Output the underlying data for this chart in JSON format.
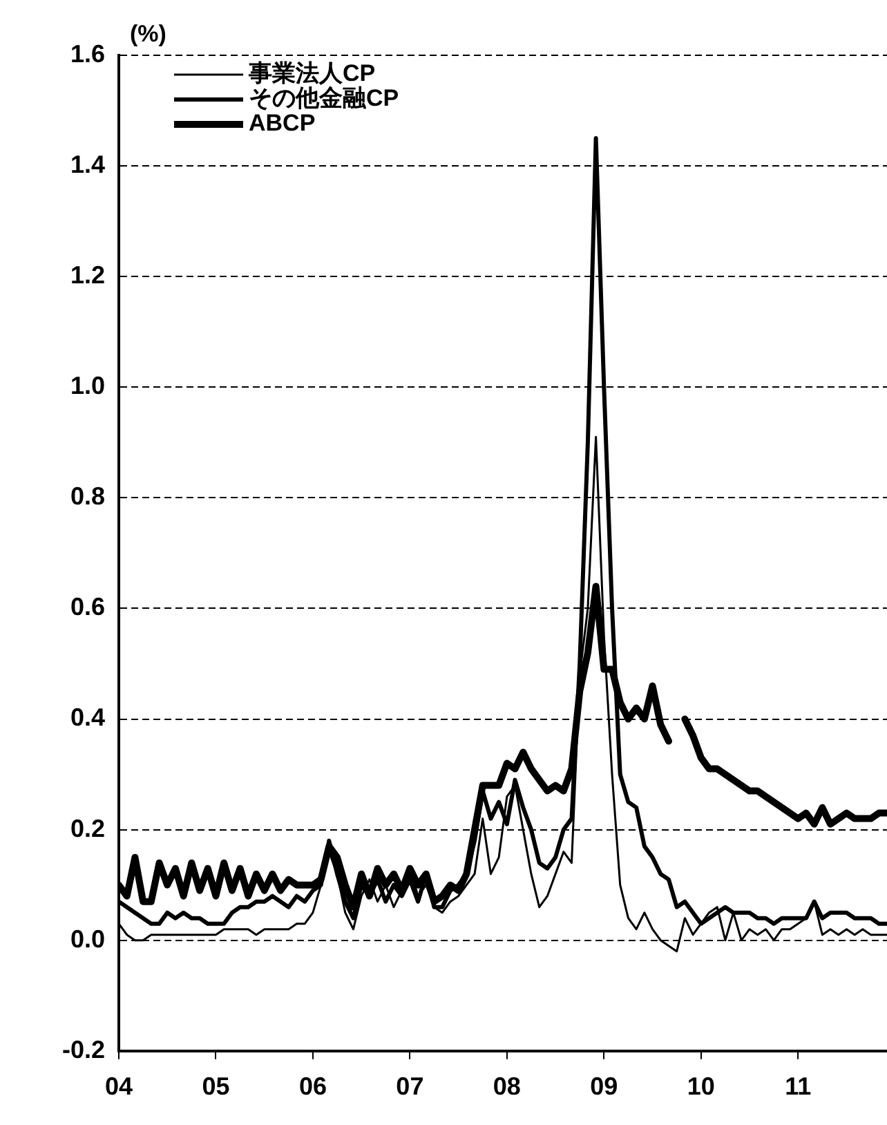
{
  "chart_data": {
    "type": "line",
    "ylabel": "(%)",
    "x": [
      "2004-01",
      "2004-02",
      "2004-03",
      "2004-04",
      "2004-05",
      "2004-06",
      "2004-07",
      "2004-08",
      "2004-09",
      "2004-10",
      "2004-11",
      "2004-12",
      "2005-01",
      "2005-02",
      "2005-03",
      "2005-04",
      "2005-05",
      "2005-06",
      "2005-07",
      "2005-08",
      "2005-09",
      "2005-10",
      "2005-11",
      "2005-12",
      "2006-01",
      "2006-02",
      "2006-03",
      "2006-04",
      "2006-05",
      "2006-06",
      "2006-07",
      "2006-08",
      "2006-09",
      "2006-10",
      "2006-11",
      "2006-12",
      "2007-01",
      "2007-02",
      "2007-03",
      "2007-04",
      "2007-05",
      "2007-06",
      "2007-07",
      "2007-08",
      "2007-09",
      "2007-10",
      "2007-11",
      "2007-12",
      "2008-01",
      "2008-02",
      "2008-03",
      "2008-04",
      "2008-05",
      "2008-06",
      "2008-07",
      "2008-08",
      "2008-09",
      "2008-10",
      "2008-11",
      "2008-12",
      "2009-01",
      "2009-02",
      "2009-03",
      "2009-04",
      "2009-05",
      "2009-06",
      "2009-07",
      "2009-08",
      "2009-09",
      "2009-10",
      "2009-11",
      "2009-12",
      "2010-01",
      "2010-02",
      "2010-03",
      "2010-04",
      "2010-05",
      "2010-06",
      "2010-07",
      "2010-08",
      "2010-09",
      "2010-10",
      "2010-11",
      "2010-12",
      "2011-01",
      "2011-02",
      "2011-03",
      "2011-04",
      "2011-05",
      "2011-06",
      "2011-07",
      "2011-08",
      "2011-09",
      "2011-10",
      "2011-11",
      "2011-12"
    ],
    "series": [
      {
        "name": "事業法人CP",
        "color": "#000000",
        "values": [
          0.03,
          0.01,
          0.0,
          0.0,
          0.01,
          0.01,
          0.01,
          0.01,
          0.01,
          0.01,
          0.01,
          0.01,
          0.01,
          0.02,
          0.02,
          0.02,
          0.02,
          0.01,
          0.02,
          0.02,
          0.02,
          0.02,
          0.03,
          0.03,
          0.05,
          0.1,
          0.16,
          0.12,
          0.05,
          0.02,
          0.08,
          0.11,
          0.07,
          0.1,
          0.06,
          0.09,
          0.13,
          0.08,
          0.1,
          0.06,
          0.05,
          0.07,
          0.08,
          0.1,
          0.12,
          0.22,
          0.12,
          0.15,
          0.26,
          0.28,
          0.2,
          0.12,
          0.06,
          0.08,
          0.12,
          0.16,
          0.14,
          0.48,
          0.6,
          0.91,
          0.55,
          0.3,
          0.1,
          0.04,
          0.02,
          0.05,
          0.02,
          0.0,
          -0.01,
          -0.02,
          0.04,
          0.01,
          0.03,
          0.05,
          0.06,
          0.0,
          0.05,
          0.0,
          0.02,
          0.01,
          0.02,
          0.0,
          0.02,
          0.02,
          0.03,
          0.04,
          0.07,
          0.01,
          0.02,
          0.01,
          0.02,
          0.01,
          0.02,
          0.01,
          0.01,
          0.01
        ]
      },
      {
        "name": "その他金融CP",
        "color": "#000000",
        "values": [
          0.07,
          0.06,
          0.05,
          0.04,
          0.03,
          0.03,
          0.05,
          0.04,
          0.05,
          0.04,
          0.04,
          0.03,
          0.03,
          0.03,
          0.05,
          0.06,
          0.06,
          0.07,
          0.07,
          0.08,
          0.07,
          0.06,
          0.08,
          0.07,
          0.09,
          0.1,
          0.18,
          0.12,
          0.07,
          0.04,
          0.1,
          0.08,
          0.11,
          0.07,
          0.1,
          0.08,
          0.11,
          0.07,
          0.12,
          0.06,
          0.06,
          0.09,
          0.1,
          0.12,
          0.18,
          0.27,
          0.22,
          0.25,
          0.21,
          0.29,
          0.24,
          0.2,
          0.14,
          0.13,
          0.15,
          0.2,
          0.22,
          0.5,
          0.9,
          1.45,
          1.0,
          0.6,
          0.3,
          0.25,
          0.24,
          0.17,
          0.15,
          0.12,
          0.11,
          0.06,
          0.07,
          0.05,
          0.03,
          0.04,
          0.05,
          0.06,
          0.05,
          0.05,
          0.05,
          0.04,
          0.04,
          0.03,
          0.04,
          0.04,
          0.04,
          0.04,
          0.07,
          0.04,
          0.05,
          0.05,
          0.05,
          0.04,
          0.04,
          0.04,
          0.03,
          0.03
        ]
      },
      {
        "name": "ABCP",
        "color": "#000000",
        "values": [
          0.1,
          0.08,
          0.15,
          0.07,
          0.07,
          0.14,
          0.1,
          0.13,
          0.08,
          0.14,
          0.09,
          0.13,
          0.08,
          0.14,
          0.09,
          0.13,
          0.08,
          0.12,
          0.09,
          0.12,
          0.09,
          0.11,
          0.1,
          0.1,
          0.1,
          0.11,
          0.17,
          0.15,
          0.1,
          0.06,
          0.12,
          0.08,
          0.13,
          0.1,
          0.12,
          0.09,
          0.13,
          0.1,
          0.12,
          0.07,
          0.08,
          0.1,
          0.09,
          0.12,
          0.2,
          0.28,
          0.28,
          0.28,
          0.32,
          0.31,
          0.34,
          0.31,
          0.29,
          0.27,
          0.28,
          0.27,
          0.31,
          0.45,
          0.52,
          0.64,
          0.49,
          0.49,
          0.43,
          0.4,
          0.42,
          0.4,
          0.46,
          0.39,
          0.36,
          null,
          0.4,
          0.37,
          0.33,
          0.31,
          0.31,
          0.3,
          0.29,
          0.28,
          0.27,
          0.27,
          0.26,
          0.25,
          0.24,
          0.23,
          0.22,
          0.23,
          0.21,
          0.24,
          0.21,
          0.22,
          0.23,
          0.22,
          0.22,
          0.22,
          0.23,
          0.23
        ]
      }
    ],
    "xlim": [
      "2004-01",
      "2011-12"
    ],
    "xticks": [
      {
        "value": "2004-01",
        "label": "04"
      },
      {
        "value": "2005-01",
        "label": "05"
      },
      {
        "value": "2006-01",
        "label": "06"
      },
      {
        "value": "2007-01",
        "label": "07"
      },
      {
        "value": "2008-01",
        "label": "08"
      },
      {
        "value": "2009-01",
        "label": "09"
      },
      {
        "value": "2010-01",
        "label": "10"
      },
      {
        "value": "2011-01",
        "label": "11"
      }
    ],
    "ylim": [
      -0.2,
      1.6
    ],
    "yticks": [
      {
        "value": -0.2,
        "label": "-0.2"
      },
      {
        "value": 0,
        "label": "0.0"
      },
      {
        "value": 0.2,
        "label": "0.2"
      },
      {
        "value": 0.4,
        "label": "0.4"
      },
      {
        "value": 0.6,
        "label": "0.6"
      },
      {
        "value": 0.8,
        "label": "0.8"
      },
      {
        "value": 1.0,
        "label": "1.0"
      },
      {
        "value": 1.2,
        "label": "1.2"
      },
      {
        "value": 1.4,
        "label": "1.4"
      },
      {
        "value": 1.6,
        "label": "1.6"
      }
    ],
    "grid": "y",
    "legend": "top left",
    "line_style": "solid",
    "marker": "none"
  }
}
